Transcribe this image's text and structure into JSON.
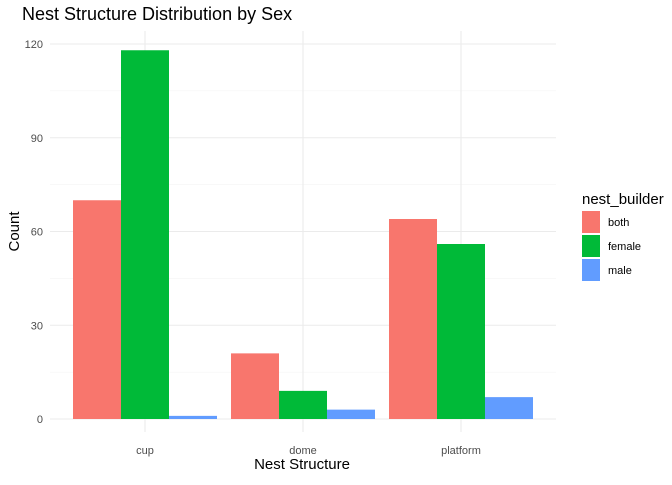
{
  "chart_data": {
    "type": "bar",
    "title": "Nest Structure Distribution by Sex",
    "xlabel": "Nest Structure",
    "ylabel": "Count",
    "categories": [
      "cup",
      "dome",
      "platform"
    ],
    "series": [
      {
        "name": "both",
        "color": "#F8766D",
        "values": [
          70,
          21,
          64
        ]
      },
      {
        "name": "female",
        "color": "#00BA38",
        "values": [
          118,
          9,
          56
        ]
      },
      {
        "name": "male",
        "color": "#619CFF",
        "values": [
          1,
          3,
          7
        ]
      }
    ],
    "ylim": [
      0,
      123.5
    ],
    "yticks": [
      "0",
      "30",
      "60",
      "90",
      "120"
    ],
    "legend": {
      "title": "nest_builder",
      "position": "right"
    },
    "grid": true
  }
}
